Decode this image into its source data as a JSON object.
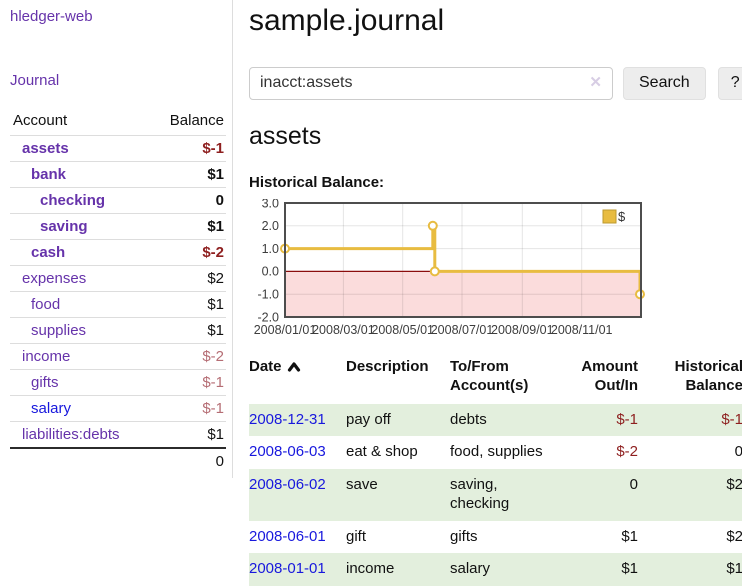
{
  "colors": {
    "link_purple": "#6633aa",
    "link_blue": "#1818dd",
    "negative_strong": "#8e1f1f",
    "negative_muted": "#b56d74",
    "row_green": "#e3efdd",
    "chart_gold": "#e8bc41",
    "chart_negative_bg": "#fbdcdc",
    "chart_zero_line": "#8b0d0d"
  },
  "sidebar": {
    "brand": "hledger-web",
    "journal_link": "Journal",
    "header": {
      "account": "Account",
      "balance": "Balance"
    },
    "accounts": [
      {
        "name": "assets",
        "balance": "$-1",
        "depth": 1,
        "in_filter": true,
        "link": "purple",
        "balance_tone": "negative"
      },
      {
        "name": "bank",
        "balance": "$1",
        "depth": 2,
        "in_filter": true,
        "link": "purple",
        "balance_tone": "normal"
      },
      {
        "name": "checking",
        "balance": "0",
        "depth": 3,
        "in_filter": true,
        "link": "purple",
        "balance_tone": "normal"
      },
      {
        "name": "saving",
        "balance": "$1",
        "depth": 3,
        "in_filter": true,
        "link": "purple",
        "balance_tone": "normal"
      },
      {
        "name": "cash",
        "balance": "$-2",
        "depth": 2,
        "in_filter": true,
        "link": "purple",
        "balance_tone": "negative"
      },
      {
        "name": "expenses",
        "balance": "$2",
        "depth": 1,
        "in_filter": false,
        "link": "purple",
        "balance_tone": "normal"
      },
      {
        "name": "food",
        "balance": "$1",
        "depth": 2,
        "in_filter": false,
        "link": "purple",
        "balance_tone": "normal"
      },
      {
        "name": "supplies",
        "balance": "$1",
        "depth": 2,
        "in_filter": false,
        "link": "purple",
        "balance_tone": "normal"
      },
      {
        "name": "income",
        "balance": "$-2",
        "depth": 1,
        "in_filter": false,
        "link": "purple",
        "balance_tone": "negative-muted"
      },
      {
        "name": "gifts",
        "balance": "$-1",
        "depth": 2,
        "in_filter": false,
        "link": "purple",
        "balance_tone": "negative-muted"
      },
      {
        "name": "salary",
        "balance": "$-1",
        "depth": 2,
        "in_filter": false,
        "link": "blue",
        "balance_tone": "negative-muted"
      },
      {
        "name": "liabilities:debts",
        "balance": "$1",
        "depth": 1,
        "in_filter": false,
        "link": "purple",
        "balance_tone": "normal"
      }
    ],
    "total": "0"
  },
  "main": {
    "title": "sample.journal",
    "search": {
      "value": "inacct:assets",
      "clear_icon": "✕",
      "button_label": "Search",
      "help_label": "?"
    },
    "account_heading": "assets",
    "chart_heading": "Historical Balance:"
  },
  "register": {
    "columns": [
      {
        "label": "Date",
        "sorted": "ascending"
      },
      {
        "label": "Description"
      },
      {
        "label": "To/From Account(s)"
      },
      {
        "label": "Amount Out/In",
        "align": "right"
      },
      {
        "label": "Historical Balance",
        "align": "right"
      }
    ],
    "rows": [
      {
        "date": "2008-12-31",
        "description": "pay off",
        "accounts": "debts",
        "amount": "$-1",
        "balance": "$-1",
        "shaded": true
      },
      {
        "date": "2008-06-03",
        "description": "eat & shop",
        "accounts": "food, supplies",
        "amount": "$-2",
        "balance": "0",
        "shaded": false
      },
      {
        "date": "2008-06-02",
        "description": "save",
        "accounts": "saving, checking",
        "amount": "0",
        "balance": "$2",
        "shaded": true
      },
      {
        "date": "2008-06-01",
        "description": "gift",
        "accounts": "gifts",
        "amount": "$1",
        "balance": "$2",
        "shaded": false
      },
      {
        "date": "2008-01-01",
        "description": "income",
        "accounts": "salary",
        "amount": "$1",
        "balance": "$1",
        "shaded": true
      }
    ]
  },
  "chart_data": {
    "type": "line",
    "title": "Historical Balance:",
    "series": [
      {
        "name": "$",
        "color": "#e8bc41",
        "step": true,
        "markers": true,
        "points": [
          [
            "2008-01-01",
            1
          ],
          [
            "2008-06-01",
            2
          ],
          [
            "2008-06-03",
            0
          ],
          [
            "2008-12-31",
            -1
          ]
        ]
      }
    ],
    "xdomain": [
      "2008-01-01",
      "2009-01-01"
    ],
    "xticks": [
      {
        "v": "2008-01-01",
        "label": "2008/01/01"
      },
      {
        "v": "2008-03-01",
        "label": "2008/03/01"
      },
      {
        "v": "2008-05-01",
        "label": "2008/05/01"
      },
      {
        "v": "2008-07-01",
        "label": "2008/07/01"
      },
      {
        "v": "2008-09-01",
        "label": "2008/09/01"
      },
      {
        "v": "2008-11-01",
        "label": "2008/11/01"
      }
    ],
    "ylim": [
      -2,
      3
    ],
    "yticks": [
      {
        "v": 3,
        "label": "3.0"
      },
      {
        "v": 2,
        "label": "2.0"
      },
      {
        "v": 1,
        "label": "1.0"
      },
      {
        "v": 0,
        "label": "0.0"
      },
      {
        "v": -1,
        "label": "-1.0"
      },
      {
        "v": -2,
        "label": "-2.0"
      }
    ],
    "grid": true,
    "negative_region": true,
    "negative_region_color": "#fbdcdc",
    "zero_line_color": "#8b0d0d",
    "legend": {
      "position": "top-right",
      "label": "$"
    }
  }
}
